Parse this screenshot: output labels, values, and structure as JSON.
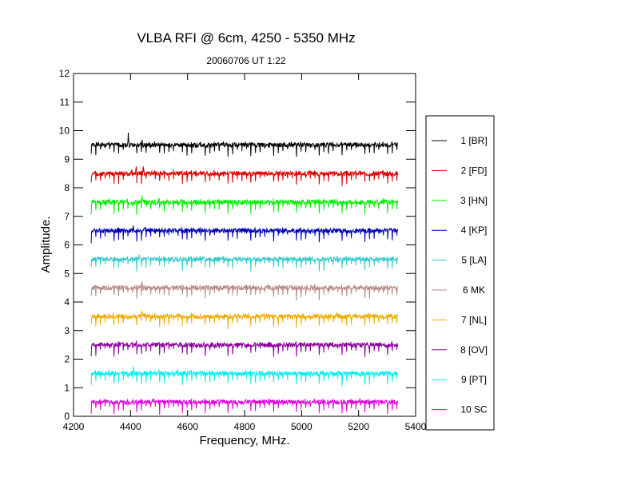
{
  "chart_data": {
    "type": "line",
    "title": "VLBA RFI @ 6cm, 4250 - 5350 MHz",
    "subtitle": "20060706   UT 1:22",
    "xlabel": "Frequency, MHz.",
    "ylabel": "Amplitude.",
    "xlim": [
      4200,
      5400
    ],
    "ylim": [
      0,
      12
    ],
    "x_ticks": [
      "4200",
      "4400",
      "4600",
      "4800",
      "5000",
      "5200",
      "5400"
    ],
    "y_ticks": [
      "0",
      "1",
      "2",
      "3",
      "4",
      "5",
      "6",
      "7",
      "8",
      "9",
      "10",
      "11",
      "12"
    ],
    "x_range_data": [
      4262,
      5338
    ],
    "grid": false,
    "legend_position": "right",
    "pattern": {
      "channel_width_mhz": 16,
      "dip_depth": 0.4,
      "noise_amplitude": 0.08
    },
    "series": [
      {
        "name": "1 [BR]",
        "color": "#000000",
        "baseline": 9.5,
        "spikes": [
          [
            4392,
            0.45
          ],
          [
            4440,
            0.2
          ]
        ]
      },
      {
        "name": "2 [FD]",
        "color": "#dd0000",
        "baseline": 8.5,
        "spikes": [
          [
            4420,
            0.3
          ],
          [
            4445,
            0.25
          ]
        ]
      },
      {
        "name": "3 [HN]",
        "color": "#00ee00",
        "baseline": 7.5,
        "spikes": [
          [
            4440,
            0.25
          ],
          [
            4500,
            0.15
          ]
        ]
      },
      {
        "name": "4 [KP]",
        "color": "#0000bb",
        "baseline": 6.5,
        "spikes": [
          [
            4450,
            0.2
          ],
          [
            4410,
            0.15
          ]
        ]
      },
      {
        "name": "5 [LA]",
        "color": "#33cccc",
        "baseline": 5.5,
        "spikes": [
          [
            4430,
            0.2
          ]
        ]
      },
      {
        "name": "6 MK",
        "color": "#bb8888",
        "baseline": 4.5,
        "spikes": [
          [
            4440,
            0.2
          ]
        ]
      },
      {
        "name": "7 [NL]",
        "color": "#eeaa00",
        "baseline": 3.5,
        "spikes": [
          [
            4440,
            0.25
          ]
        ]
      },
      {
        "name": "8 [OV]",
        "color": "#880099",
        "baseline": 2.5,
        "spikes": [
          [
            4420,
            0.2
          ]
        ]
      },
      {
        "name": "9 [PT]",
        "color": "#00eeee",
        "baseline": 1.5,
        "spikes": [
          [
            4410,
            0.2
          ],
          [
            4500,
            0.15
          ]
        ]
      },
      {
        "name": "10 SC",
        "color": "#dd00dd",
        "baseline": 0.5,
        "spikes": [
          [
            4480,
            0.2
          ]
        ]
      }
    ]
  }
}
